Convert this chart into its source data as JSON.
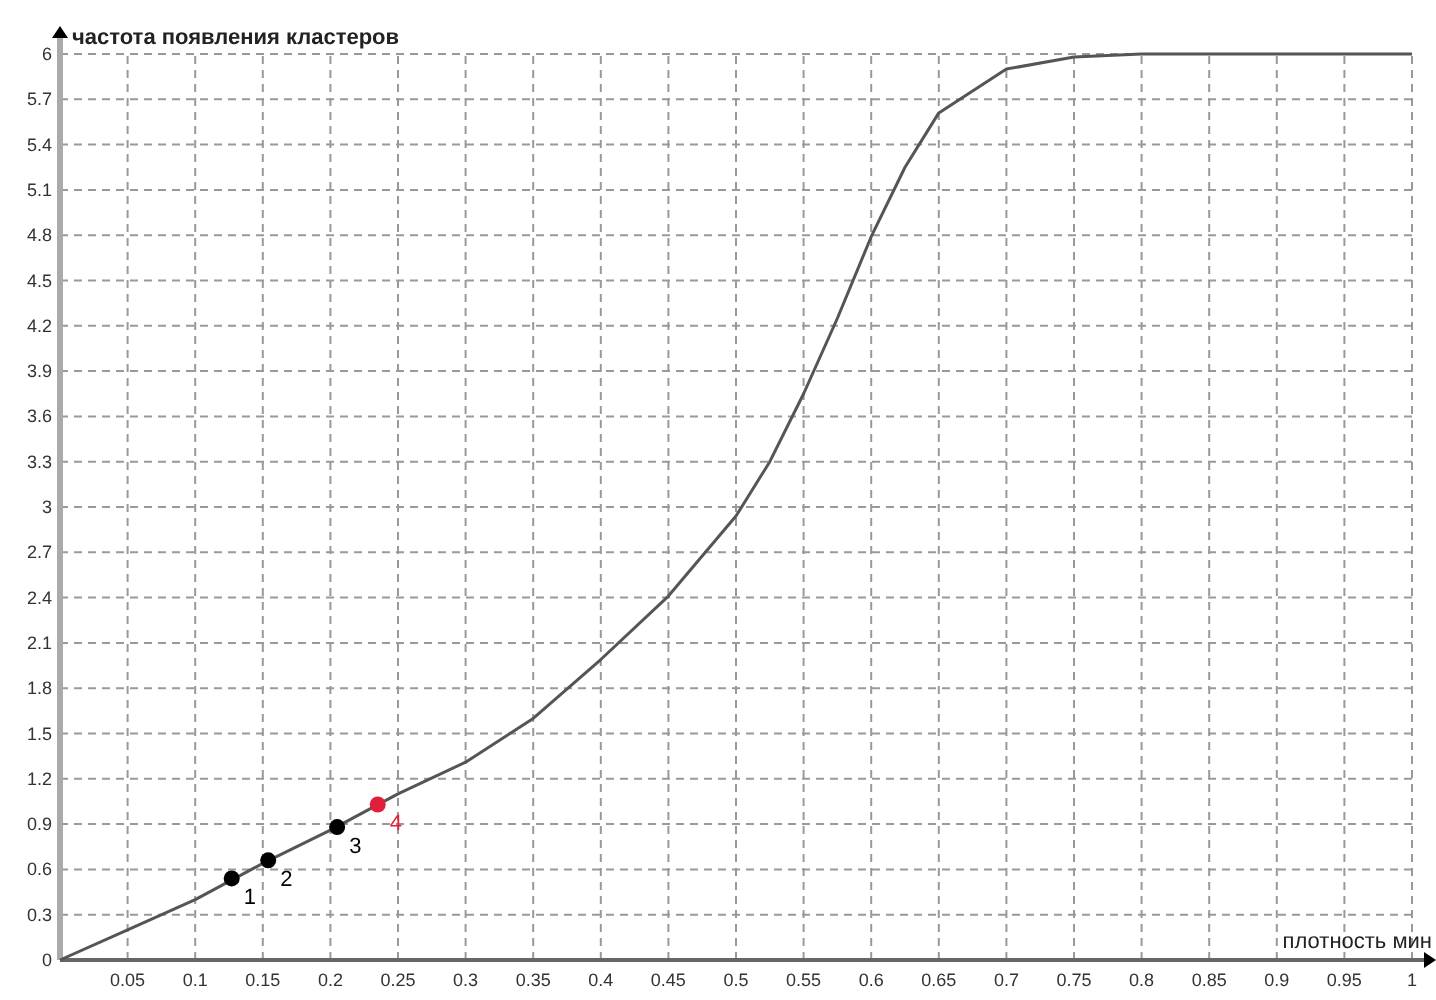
{
  "chart_data": {
    "type": "line",
    "title": "частота появления кластеров",
    "xlabel": "плотность мин",
    "xlim": [
      0,
      1
    ],
    "xticks": [
      0.05,
      0.1,
      0.15,
      0.2,
      0.25,
      0.3,
      0.35,
      0.4,
      0.45,
      0.5,
      0.55,
      0.6,
      0.65,
      0.7,
      0.75,
      0.8,
      0.85,
      0.9,
      0.95,
      1
    ],
    "ylim": [
      0,
      6
    ],
    "yticks": [
      0,
      0.3,
      0.6,
      0.9,
      1.2,
      1.5,
      1.8,
      2.1,
      2.4,
      2.7,
      3,
      3.3,
      3.6,
      3.9,
      4.2,
      4.5,
      4.8,
      5.1,
      5.4,
      5.7,
      6
    ],
    "grid": true,
    "line_style": "solid",
    "series": [
      {
        "color": "#555555",
        "x": [
          0,
          0.05,
          0.1,
          0.15,
          0.2,
          0.25,
          0.3,
          0.35,
          0.4,
          0.45,
          0.5,
          0.525,
          0.55,
          0.575,
          0.6,
          0.625,
          0.65,
          0.7,
          0.75,
          0.8,
          0.9,
          1
        ],
        "values": [
          0,
          0.2,
          0.4,
          0.64,
          0.86,
          1.1,
          1.31,
          1.6,
          1.99,
          2.41,
          2.94,
          3.3,
          3.75,
          4.25,
          4.79,
          5.25,
          5.61,
          5.9,
          5.98,
          6,
          6,
          6
        ]
      },
      {
        "type": "scatter",
        "marker": "circle",
        "colors": [
          "#000000",
          "#000000",
          "#000000",
          "#e0203a"
        ],
        "x": [
          0.127,
          0.154,
          0.205,
          0.235
        ],
        "values": [
          0.54,
          0.66,
          0.88,
          1.03
        ]
      }
    ],
    "annotations": [
      {
        "text": "1",
        "x": 0.127,
        "y": 0.54
      },
      {
        "text": "2",
        "x": 0.154,
        "y": 0.66
      },
      {
        "text": "3",
        "x": 0.205,
        "y": 0.88
      },
      {
        "text": "4",
        "x": 0.235,
        "y": 1.03
      }
    ]
  }
}
